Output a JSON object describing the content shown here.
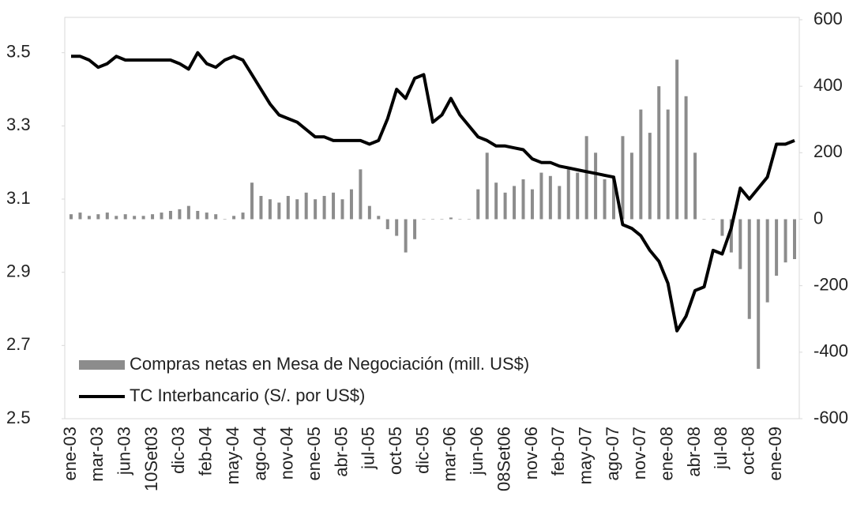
{
  "chart_data": {
    "type": "combo",
    "categories": [
      "ene-03",
      null,
      null,
      "mar-03",
      null,
      null,
      "jun-03",
      null,
      null,
      "10Set03",
      null,
      null,
      "dic-03",
      null,
      null,
      "feb-04",
      null,
      null,
      "may-04",
      null,
      null,
      "ago-04",
      null,
      null,
      "nov-04",
      null,
      null,
      "ene-05",
      null,
      null,
      "abr-05",
      null,
      null,
      "jul-05",
      null,
      null,
      "oct-05",
      null,
      null,
      "dic-05",
      null,
      null,
      "mar-06",
      null,
      null,
      "jun-06",
      null,
      null,
      "08Set06",
      null,
      null,
      "nov-06",
      null,
      null,
      "feb-07",
      null,
      null,
      "may-07",
      null,
      null,
      "ago-07",
      null,
      null,
      "nov-07",
      null,
      null,
      "ene-08",
      null,
      null,
      "abr-08",
      null,
      null,
      "jul-08",
      null,
      null,
      "oct-08",
      null,
      null,
      "ene-09",
      null,
      null
    ],
    "series": [
      {
        "name": "Compras netas en Mesa de Negociación (mill. US$)",
        "type": "bar",
        "axis": "y2",
        "color": "#8c8c8c",
        "values": [
          15,
          20,
          10,
          15,
          20,
          10,
          15,
          10,
          10,
          15,
          20,
          25,
          30,
          40,
          25,
          20,
          15,
          0,
          10,
          20,
          110,
          70,
          60,
          50,
          70,
          60,
          80,
          60,
          70,
          80,
          60,
          90,
          150,
          40,
          10,
          -30,
          -50,
          -100,
          -60,
          0,
          0,
          0,
          5,
          0,
          0,
          90,
          200,
          110,
          80,
          100,
          120,
          90,
          140,
          130,
          100,
          150,
          140,
          250,
          200,
          120,
          130,
          250,
          200,
          330,
          260,
          400,
          330,
          480,
          370,
          200,
          0,
          0,
          -50,
          -100,
          -150,
          -300,
          -450,
          -250,
          -170,
          -130,
          -120
        ]
      },
      {
        "name": "TC Interbancario (S/. por US$)",
        "type": "line",
        "color": "#000000",
        "values": [
          3.49,
          3.49,
          3.48,
          3.46,
          3.47,
          3.49,
          3.48,
          3.48,
          3.48,
          3.48,
          3.48,
          3.48,
          3.47,
          3.455,
          3.5,
          3.47,
          3.46,
          3.48,
          3.49,
          3.48,
          3.44,
          3.4,
          3.36,
          3.33,
          3.32,
          3.31,
          3.29,
          3.27,
          3.27,
          3.26,
          3.26,
          3.26,
          3.26,
          3.25,
          3.26,
          3.32,
          3.4,
          3.375,
          3.43,
          3.44,
          3.31,
          3.33,
          3.375,
          3.33,
          3.3,
          3.27,
          3.26,
          3.245,
          3.245,
          3.24,
          3.235,
          3.21,
          3.2,
          3.2,
          3.19,
          3.185,
          3.18,
          3.175,
          3.17,
          3.165,
          3.16,
          3.03,
          3.02,
          3.0,
          2.96,
          2.93,
          2.87,
          2.74,
          2.78,
          2.85,
          2.86,
          2.96,
          2.95,
          3.02,
          3.13,
          3.1,
          3.13,
          3.16,
          3.25,
          3.25,
          3.26
        ]
      }
    ],
    "ylim": [
      2.5,
      3.59
    ],
    "yticks": [
      2.5,
      2.7,
      2.9,
      3.1,
      3.3,
      3.5
    ],
    "y2lim": [
      -600,
      600
    ],
    "y2ticks": [
      -600,
      -400,
      -200,
      0,
      200,
      400,
      600
    ],
    "legend": "lower-left"
  }
}
